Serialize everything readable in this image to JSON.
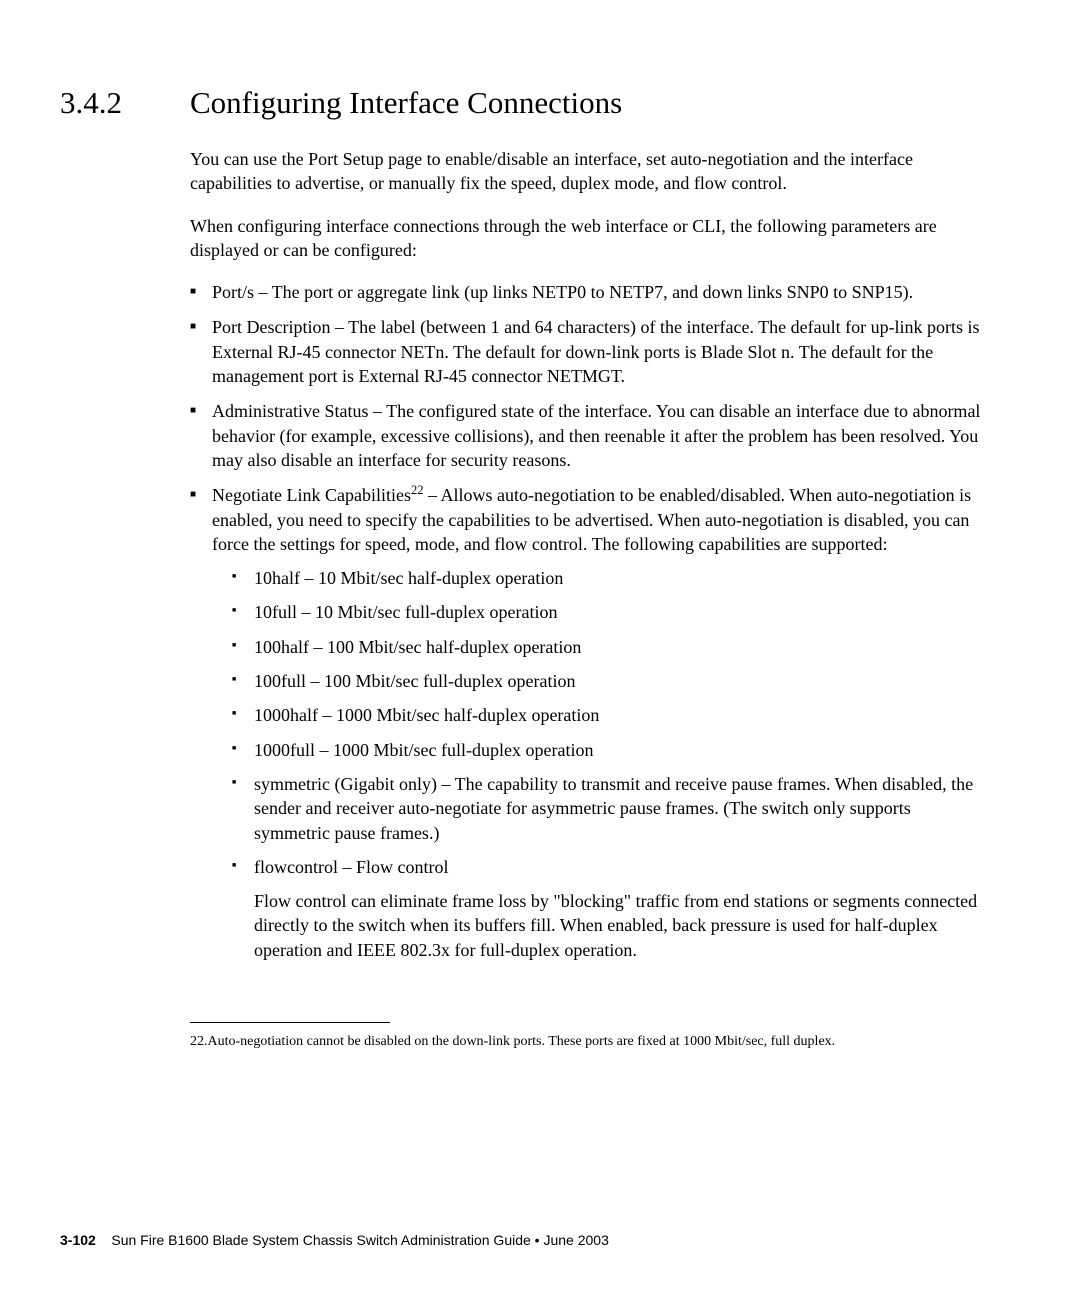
{
  "heading": {
    "number": "3.4.2",
    "title": "Configuring Interface Connections"
  },
  "paragraphs": {
    "intro1": "You can use the Port Setup page to enable/disable an interface, set auto-negotiation and the interface capabilities to advertise, or manually fix the speed, duplex mode, and flow control.",
    "intro2": "When configuring interface connections through the web interface or CLI, the following parameters are displayed or can be configured:"
  },
  "bullets": [
    "Port/s – The port or aggregate link (up links NETP0 to NETP7, and down links SNP0 to SNP15).",
    "Port Description – The label (between 1 and 64 characters) of the interface. The default for up-link ports is External RJ-45 connector NETn. The default for down-link ports is Blade Slot n. The default for the management port is External RJ-45 connector NETMGT.",
    "Administrative Status – The configured state of the interface. You can disable an interface due to abnormal behavior (for example, excessive collisions), and then reenable it after the problem has been resolved. You may also disable an interface for security reasons."
  ],
  "negotiate": {
    "prefix": "Negotiate Link Capabilities",
    "supref": "22",
    "suffix": " – Allows auto-negotiation to be enabled/disabled. When auto-negotiation is enabled, you need to specify the capabilities to be advertised. When auto-negotiation is disabled, you can force the settings for speed, mode, and flow control. The following capabilities are supported:"
  },
  "sub_bullets": [
    "10half – 10 Mbit/sec half-duplex operation",
    "10full – 10 Mbit/sec full-duplex operation",
    "100half – 100 Mbit/sec half-duplex operation",
    "100full – 100 Mbit/sec full-duplex operation",
    "1000half – 1000 Mbit/sec half-duplex operation",
    "1000full – 1000 Mbit/sec full-duplex operation",
    "symmetric (Gigabit only) – The capability to transmit and receive pause frames. When disabled, the sender and receiver auto-negotiate for asymmetric pause frames. (The switch only supports symmetric pause frames.)",
    "flowcontrol – Flow control"
  ],
  "flow_para": "Flow control can eliminate frame loss by \"blocking\" traffic from end stations or segments connected directly to the switch when its buffers fill. When enabled, back pressure is used for half-duplex operation and IEEE 802.3x for full-duplex operation.",
  "footnote": "22.Auto-negotiation cannot be disabled on the down-link ports. These ports are fixed at 1000 Mbit/sec, full duplex.",
  "footer": {
    "pagenum": "3-102",
    "text": "Sun Fire B1600 Blade System Chassis Switch Administration Guide • June 2003"
  }
}
